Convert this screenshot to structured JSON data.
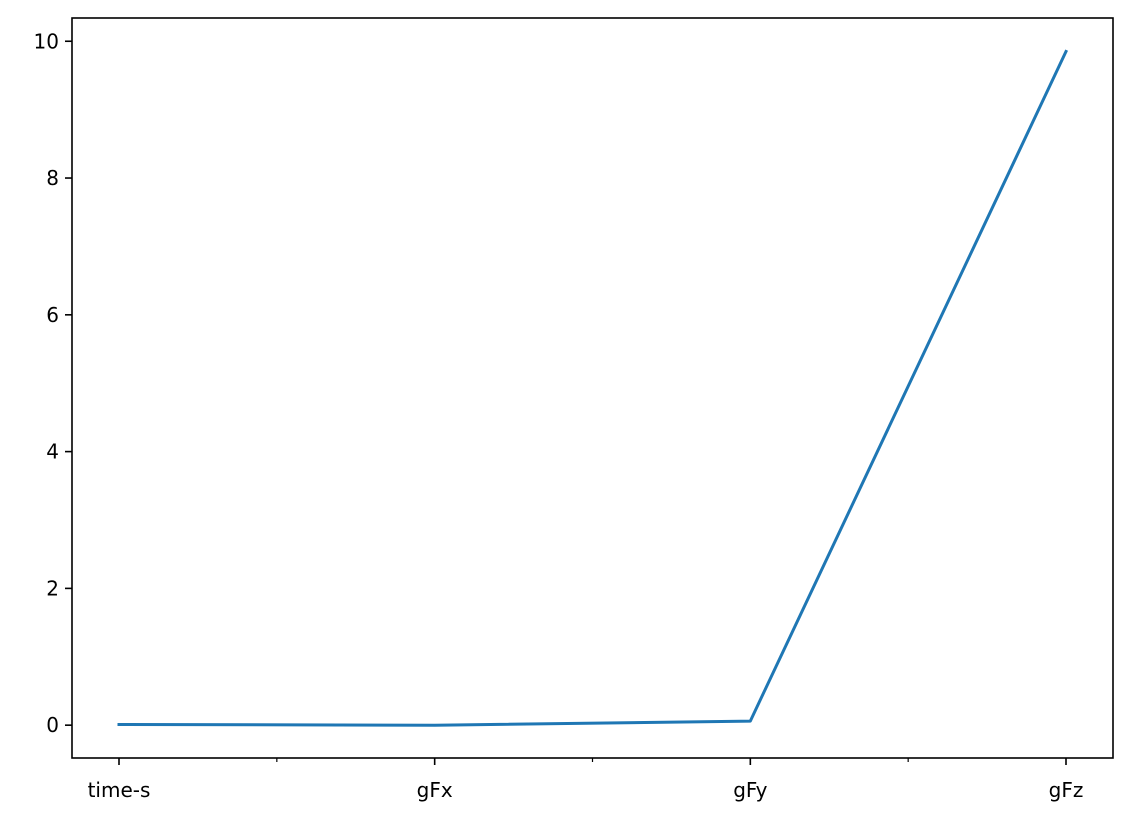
{
  "chart_data": {
    "type": "line",
    "title": "",
    "xlabel": "",
    "ylabel": "",
    "categories": [
      "time-s",
      "gFx",
      "gFy",
      "gFz"
    ],
    "series": [
      {
        "values": [
          0.01,
          0.0,
          0.06,
          9.85
        ],
        "color": "#1f77b4"
      }
    ],
    "ylim": [
      -0.48,
      10.34
    ],
    "yticks": [
      0,
      2,
      4,
      6,
      8,
      10
    ],
    "minor_x_ticks": true,
    "grid": false,
    "legend": "none"
  }
}
